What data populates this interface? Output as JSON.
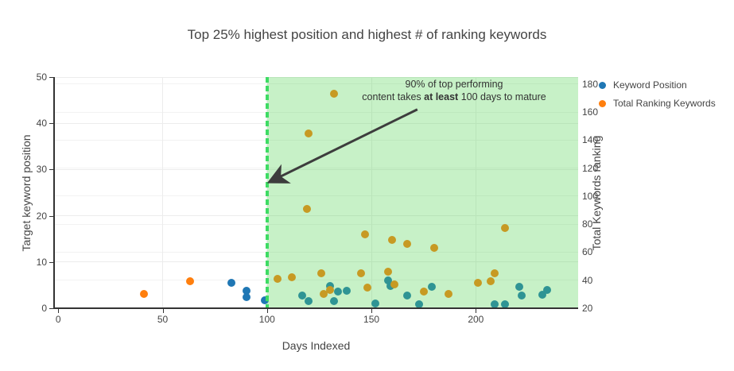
{
  "title": "Top 25% highest position and highest # of ranking keywords",
  "legend": {
    "items": [
      {
        "label": "Keyword Position",
        "color": "#1f77b4"
      },
      {
        "label": "Total Ranking Keywords",
        "color": "#ff7f0e"
      }
    ]
  },
  "annotation": {
    "line1": "90% of top performing",
    "line2_prefix": "content takes ",
    "line2_bold": "at least",
    "line2_suffix": " 100 days to mature"
  },
  "chart_data": {
    "type": "scatter",
    "title": "Top 25% highest position and highest # of ranking keywords",
    "xlabel": "Days Indexed",
    "ylabel_left": "Target keyword position",
    "ylabel_right": "Total Keywords ranking",
    "xlim": [
      -2,
      249
    ],
    "ylim_left": [
      0,
      50
    ],
    "ylim_right": [
      20,
      185
    ],
    "xticks": [
      0,
      50,
      100,
      150,
      200
    ],
    "yticks_left": [
      0,
      10,
      20,
      30,
      40,
      50
    ],
    "yticks_right": [
      20,
      40,
      60,
      80,
      100,
      120,
      140,
      160,
      180
    ],
    "grid": true,
    "legend_position": "right",
    "vline": {
      "x": 100,
      "color": "#3edc64",
      "width": 4,
      "dash": [
        7,
        4
      ]
    },
    "region": {
      "x0": 100,
      "x1": 249,
      "color": "rgba(80,210,80,0.32)",
      "layer": "above"
    },
    "arrow": {
      "from_xy": [
        172,
        43.0
      ],
      "to_xy": [
        102,
        27.5
      ],
      "color": "#3d3d3d"
    },
    "series": [
      {
        "name": "Keyword Position",
        "axis": "left",
        "color": "#1f77b4",
        "points": [
          [
            83,
            5.5
          ],
          [
            90,
            3.8
          ],
          [
            90,
            2.4
          ],
          [
            99,
            1.7
          ],
          [
            117,
            2.7
          ],
          [
            120,
            1.6
          ],
          [
            130,
            4.8
          ],
          [
            132,
            1.6
          ],
          [
            134,
            3.6
          ],
          [
            138,
            3.7
          ],
          [
            152,
            1.0
          ],
          [
            158,
            6.0
          ],
          [
            159,
            4.8
          ],
          [
            167,
            2.7
          ],
          [
            173,
            0.8
          ],
          [
            179,
            4.7
          ],
          [
            209,
            0.8
          ],
          [
            214,
            0.8
          ],
          [
            221,
            4.7
          ],
          [
            222,
            2.8
          ],
          [
            232,
            2.9
          ],
          [
            234,
            4.0
          ]
        ]
      },
      {
        "name": "Total Ranking Keywords",
        "axis": "right",
        "color": "#ff7f0e",
        "points": [
          [
            41,
            30
          ],
          [
            63,
            39
          ],
          [
            105,
            41
          ],
          [
            112,
            42
          ],
          [
            119,
            91
          ],
          [
            120,
            145
          ],
          [
            126,
            45
          ],
          [
            127,
            30
          ],
          [
            130,
            33
          ],
          [
            132,
            173
          ],
          [
            145,
            45
          ],
          [
            147,
            73
          ],
          [
            148,
            35
          ],
          [
            158,
            46
          ],
          [
            160,
            69
          ],
          [
            161,
            37
          ],
          [
            167,
            66
          ],
          [
            175,
            32
          ],
          [
            180,
            63
          ],
          [
            187,
            30
          ],
          [
            201,
            38
          ],
          [
            207,
            39
          ],
          [
            209,
            45
          ],
          [
            214,
            77
          ]
        ]
      }
    ]
  }
}
